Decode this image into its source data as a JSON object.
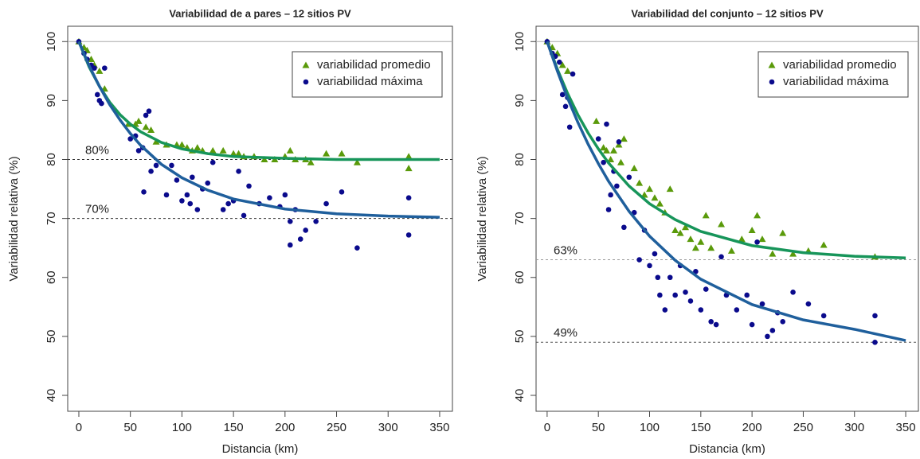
{
  "chart_data": [
    {
      "type": "scatter",
      "title": "Variabilidad de a pares – 12 sitios PV",
      "xlabel": "Distancia (km)",
      "ylabel": "Variabilidad relativa (%)",
      "xlim": [
        -10.8,
        362.4
      ],
      "ylim": [
        37.3,
        102.6
      ],
      "xticks": [
        0,
        50,
        100,
        150,
        200,
        250,
        300,
        350
      ],
      "yticks": [
        40,
        50,
        60,
        70,
        80,
        90,
        100
      ],
      "legend": "top-right",
      "series": [
        {
          "name": "variabilidad promedio",
          "color": "#5a9a0a",
          "marker": "triangle",
          "x": [
            0,
            5,
            8,
            12,
            15,
            20,
            25,
            48,
            55,
            58,
            65,
            70,
            75,
            85,
            95,
            100,
            105,
            110,
            115,
            120,
            130,
            140,
            150,
            155,
            160,
            170,
            180,
            190,
            200,
            205,
            210,
            220,
            225,
            240,
            255,
            270,
            320,
            320
          ],
          "values": [
            100,
            99,
            98.5,
            97,
            96,
            95,
            92,
            86,
            86,
            86.5,
            85.5,
            85,
            83,
            82.5,
            82.5,
            82.5,
            82,
            81.5,
            82,
            81.5,
            81.5,
            81.5,
            81,
            81,
            80.5,
            80.5,
            80,
            80,
            80.5,
            81.5,
            80,
            80,
            79.5,
            81,
            81,
            79.5,
            80.5,
            78.5
          ]
        },
        {
          "name": "variabilidad máxima",
          "color": "#0a0a8c",
          "marker": "circle",
          "x": [
            0,
            5,
            8,
            12,
            15,
            18,
            20,
            22,
            25,
            50,
            55,
            58,
            62,
            65,
            68,
            63,
            70,
            75,
            85,
            90,
            95,
            100,
            105,
            108,
            110,
            115,
            120,
            125,
            130,
            140,
            145,
            150,
            155,
            160,
            165,
            175,
            185,
            195,
            200,
            205,
            205,
            210,
            215,
            220,
            230,
            240,
            255,
            270,
            320,
            320
          ],
          "values": [
            100,
            98,
            97,
            96,
            95.5,
            91,
            90,
            89.5,
            95.5,
            83.5,
            84,
            81.5,
            82,
            87.5,
            88.2,
            74.5,
            78,
            79,
            74,
            79,
            76.5,
            73,
            74,
            72.5,
            77,
            71.5,
            75,
            76,
            79.5,
            71.5,
            72.5,
            73,
            78,
            70.5,
            75.5,
            72.5,
            73.5,
            72,
            74,
            65.5,
            69.5,
            71.5,
            66.5,
            68,
            69.5,
            72.5,
            74.5,
            65,
            73.5,
            67.2
          ]
        }
      ],
      "fits": [
        {
          "color": "#17955a",
          "x": [
            0,
            10,
            20,
            30,
            40,
            50,
            60,
            80,
            100,
            125,
            150,
            200,
            250,
            300,
            350
          ],
          "values": [
            100,
            95.7,
            92.4,
            89.7,
            87.6,
            86.0,
            84.7,
            82.9,
            81.8,
            81.0,
            80.5,
            80.2,
            80.0,
            80.0,
            80.0
          ]
        },
        {
          "color": "#1f5f9c",
          "x": [
            0,
            10,
            20,
            30,
            40,
            50,
            60,
            80,
            100,
            125,
            150,
            200,
            250,
            300,
            350
          ],
          "values": [
            100,
            95.9,
            92.4,
            89.3,
            86.7,
            84.4,
            82.4,
            79.2,
            76.9,
            74.8,
            73.3,
            71.6,
            70.8,
            70.4,
            70.2
          ]
        }
      ],
      "hlines": [
        {
          "value": 100,
          "style": "solid",
          "color": "#aaaaaa"
        },
        {
          "value": 80,
          "label": "80%",
          "style": "dashed",
          "color": "#333333"
        },
        {
          "value": 70,
          "label": "70%",
          "style": "dashed",
          "color": "#333333"
        }
      ]
    },
    {
      "type": "scatter",
      "title": "Variabilidad del conjunto – 12 sitios PV",
      "xlabel": "Distancia (km)",
      "ylabel": "Variabilidad relativa (%)",
      "xlim": [
        -10.8,
        362.4
      ],
      "ylim": [
        37.3,
        102.6
      ],
      "xticks": [
        0,
        50,
        100,
        150,
        200,
        250,
        300,
        350
      ],
      "yticks": [
        40,
        50,
        60,
        70,
        80,
        90,
        100
      ],
      "legend": "top-right",
      "series": [
        {
          "name": "variabilidad promedio",
          "color": "#5a9a0a",
          "marker": "triangle",
          "x": [
            0,
            5,
            10,
            15,
            20,
            48,
            55,
            58,
            62,
            65,
            70,
            72,
            75,
            85,
            90,
            95,
            100,
            105,
            110,
            115,
            120,
            125,
            130,
            135,
            140,
            145,
            150,
            155,
            160,
            170,
            180,
            190,
            200,
            205,
            210,
            220,
            230,
            240,
            255,
            270,
            320
          ],
          "values": [
            100,
            99,
            98,
            96,
            95,
            86.5,
            82,
            81.5,
            80,
            81.5,
            82.5,
            79.5,
            83.5,
            78.5,
            76,
            74,
            75,
            73.5,
            72.5,
            71,
            75,
            68,
            67.5,
            68.5,
            66.5,
            65,
            66,
            70.5,
            65,
            69,
            64.5,
            66.5,
            68,
            70.5,
            66.5,
            64,
            67.5,
            64,
            64.5,
            65.5,
            63.5
          ]
        },
        {
          "name": "variabilidad máxima",
          "color": "#0a0a8c",
          "marker": "circle",
          "x": [
            0,
            5,
            8,
            12,
            15,
            18,
            20,
            22,
            25,
            50,
            55,
            58,
            60,
            62,
            65,
            68,
            70,
            75,
            80,
            85,
            90,
            95,
            100,
            105,
            108,
            110,
            115,
            120,
            125,
            130,
            135,
            140,
            145,
            150,
            155,
            160,
            165,
            170,
            175,
            185,
            195,
            200,
            205,
            210,
            215,
            220,
            225,
            230,
            240,
            255,
            270,
            320,
            320
          ],
          "values": [
            100,
            98,
            97.5,
            96.5,
            91,
            89,
            90.5,
            85.5,
            94.5,
            83.5,
            79.5,
            86,
            71.5,
            74,
            78,
            75.5,
            83,
            68.5,
            77,
            71,
            63,
            68,
            62,
            64,
            60,
            57,
            54.5,
            60,
            57,
            62,
            57.5,
            56,
            61,
            54.5,
            58,
            52.5,
            52,
            63.5,
            57,
            54.5,
            57,
            52,
            66,
            55.5,
            50,
            51,
            54,
            52.5,
            57.5,
            55.5,
            53.5,
            53.5,
            49
          ]
        }
      ],
      "fits": [
        {
          "color": "#17955a",
          "x": [
            0,
            10,
            20,
            30,
            40,
            50,
            60,
            80,
            100,
            125,
            150,
            200,
            250,
            300,
            350
          ],
          "values": [
            100,
            95.3,
            91.2,
            87.6,
            84.5,
            81.8,
            79.4,
            75.5,
            72.5,
            69.8,
            67.8,
            65.4,
            64.2,
            63.6,
            63.3
          ]
        },
        {
          "color": "#1f5f9c",
          "x": [
            0,
            10,
            20,
            30,
            40,
            50,
            60,
            80,
            100,
            125,
            150,
            200,
            250,
            300,
            350
          ],
          "values": [
            100,
            95.0,
            90.4,
            86.3,
            82.6,
            79.3,
            76.3,
            71.2,
            67.0,
            62.9,
            59.7,
            55.4,
            52.8,
            51.2,
            49.3
          ]
        }
      ],
      "hlines": [
        {
          "value": 100,
          "style": "solid",
          "color": "#aaaaaa"
        },
        {
          "value": 63,
          "label": "63%",
          "style": "dashed",
          "color": "#999999"
        },
        {
          "value": 49,
          "label": "49%",
          "style": "dashed",
          "color": "#555555"
        }
      ]
    }
  ]
}
